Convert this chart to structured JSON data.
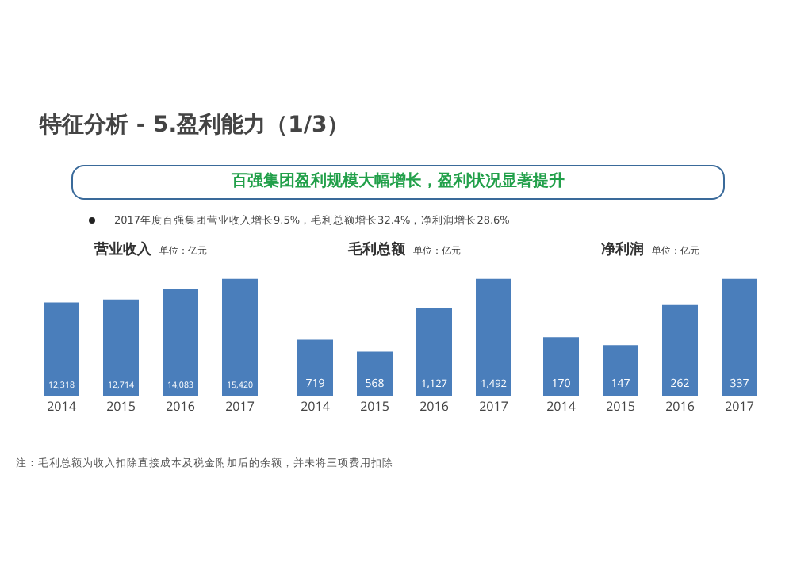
{
  "chart_data": [
    {
      "type": "other",
      "title": "特征分析 - 5.盈利能力（1/3）",
      "subtitle": "百强集团盈利规模大幅增长，盈利状况显著提升",
      "annotations": [
        "2017年度百强集团营业收入增长9.5%，毛利总额增长32.4%，净利润增长28.6%",
        "注：毛利总额为收入扣除直接成本及税金附加后的余额，并未将三项费用扣除"
      ]
    },
    {
      "type": "bar",
      "title": "营业收入",
      "subtitle": "单位：亿元",
      "categories": [
        "2014",
        "2015",
        "2016",
        "2017"
      ],
      "values": [
        12318,
        12714,
        14083,
        15420
      ],
      "value_labels": [
        "12,318",
        "12,714",
        "14,083",
        "15,420"
      ],
      "color": "#4a7ebb"
    },
    {
      "type": "bar",
      "title": "毛利总额",
      "subtitle": "单位：亿元",
      "categories": [
        "2014",
        "2015",
        "2016",
        "2017"
      ],
      "values": [
        719,
        568,
        1127,
        1492
      ],
      "value_labels": [
        "719",
        "568",
        "1,127",
        "1,492"
      ],
      "color": "#4a7ebb"
    },
    {
      "type": "bar",
      "title": "净利润",
      "subtitle": "单位：亿元",
      "categories": [
        "2014",
        "2015",
        "2016",
        "2017"
      ],
      "values": [
        170,
        147,
        262,
        337
      ],
      "data_labels": true,
      "color": "#4a7ebb"
    }
  ]
}
